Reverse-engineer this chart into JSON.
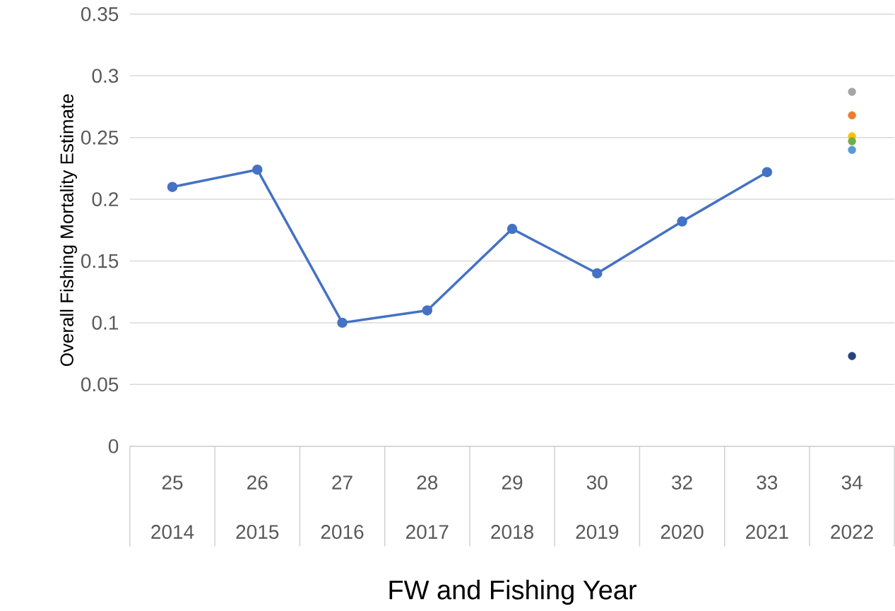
{
  "chart_data": {
    "type": "line",
    "xlabel": "FW and Fishing Year",
    "ylabel": "Overall Fishing Mortality Estimate",
    "categories": [
      "25 2014",
      "26 2015",
      "27 2016",
      "28 2017",
      "29 2018",
      "30 2019",
      "32 2020",
      "33 2021",
      "34 2022"
    ],
    "ylim": [
      0,
      0.35
    ],
    "yticks": [
      0,
      0.05,
      0.1,
      0.15,
      0.2,
      0.25,
      0.3,
      0.35
    ],
    "grid": "y",
    "marker": "circle",
    "line_style": "solid",
    "series": [
      {
        "color": "#4472c4",
        "values": [
          0.21,
          0.224,
          0.1,
          0.11,
          0.176,
          0.14,
          0.182,
          0.222,
          null
        ]
      },
      {
        "type": "scatter",
        "color": "#a5a5a5",
        "values": [
          null,
          null,
          null,
          null,
          null,
          null,
          null,
          null,
          0.287
        ]
      },
      {
        "type": "scatter",
        "color": "#ed7d31",
        "values": [
          null,
          null,
          null,
          null,
          null,
          null,
          null,
          null,
          0.268
        ]
      },
      {
        "type": "scatter",
        "color": "#ffc000",
        "values": [
          null,
          null,
          null,
          null,
          null,
          null,
          null,
          null,
          0.251
        ]
      },
      {
        "type": "scatter",
        "color": "#70ad47",
        "values": [
          null,
          null,
          null,
          null,
          null,
          null,
          null,
          null,
          0.247
        ]
      },
      {
        "type": "scatter",
        "color": "#5b9bd5",
        "values": [
          null,
          null,
          null,
          null,
          null,
          null,
          null,
          null,
          0.24
        ]
      },
      {
        "type": "scatter",
        "color": "#264478",
        "values": [
          null,
          null,
          null,
          null,
          null,
          null,
          null,
          null,
          0.073
        ]
      }
    ]
  }
}
